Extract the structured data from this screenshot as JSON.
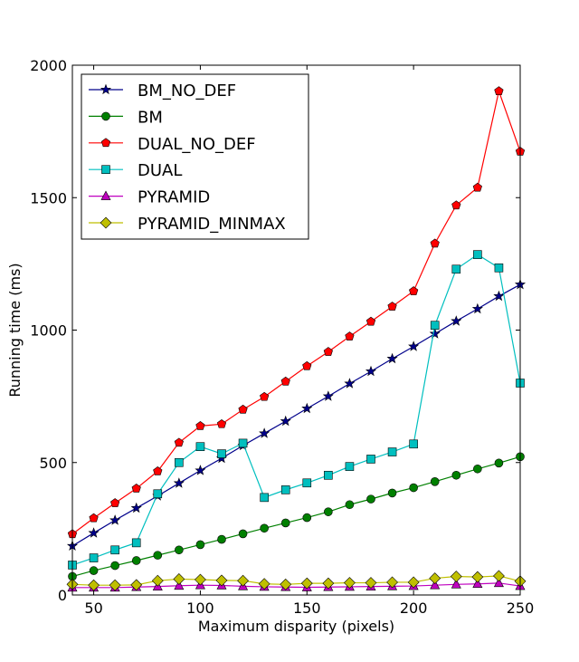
{
  "chart_data": {
    "type": "line",
    "title": "",
    "xlabel": "Maximum disparity (pixels)",
    "ylabel": "Running time (ms)",
    "xlim": [
      40,
      250
    ],
    "ylim": [
      0,
      2000
    ],
    "xticks": [
      50,
      100,
      150,
      200,
      250
    ],
    "yticks": [
      0,
      500,
      1000,
      1500,
      2000
    ],
    "grid": false,
    "legend_position": "top-left",
    "x": [
      40,
      50,
      60,
      70,
      80,
      90,
      100,
      110,
      120,
      130,
      140,
      150,
      160,
      170,
      180,
      190,
      200,
      210,
      220,
      230,
      240,
      250
    ],
    "series": [
      {
        "name": "BM_NO_DEF",
        "color": "#00008b",
        "marker": "star",
        "values": [
          185,
          234,
          282,
          328,
          374,
          422,
          470,
          516,
          564,
          610,
          656,
          704,
          750,
          798,
          844,
          892,
          938,
          986,
          1034,
          1080,
          1128,
          1172
        ]
      },
      {
        "name": "BM",
        "color": "#008000",
        "marker": "circle",
        "values": [
          70,
          92,
          111,
          130,
          150,
          170,
          190,
          210,
          231,
          252,
          272,
          292,
          314,
          341,
          362,
          385,
          405,
          428,
          452,
          476,
          498,
          522
        ]
      },
      {
        "name": "DUAL_NO_DEF",
        "color": "#ff0000",
        "marker": "pentagon",
        "values": [
          230,
          290,
          347,
          402,
          467,
          575,
          638,
          645,
          700,
          748,
          806,
          864,
          918,
          976,
          1032,
          1089,
          1147,
          1327,
          1471,
          1538,
          1902,
          1674
        ]
      },
      {
        "name": "DUAL",
        "color": "#00bfbf",
        "marker": "square",
        "values": [
          113,
          140,
          170,
          197,
          382,
          500,
          560,
          533,
          573,
          368,
          397,
          423,
          452,
          485,
          513,
          540,
          570,
          1018,
          1230,
          1285,
          1235,
          800
        ]
      },
      {
        "name": "PYRAMID",
        "color": "#bf00bf",
        "marker": "triangle",
        "values": [
          28,
          28,
          28,
          30,
          32,
          35,
          37,
          36,
          33,
          31,
          30,
          29,
          30,
          31,
          32,
          33,
          34,
          37,
          40,
          42,
          45,
          34
        ]
      },
      {
        "name": "PYRAMID_MINMAX",
        "color": "#bfbf00",
        "marker": "diamond",
        "values": [
          40,
          37,
          37,
          38,
          54,
          60,
          58,
          55,
          54,
          42,
          40,
          44,
          44,
          46,
          46,
          48,
          48,
          63,
          70,
          68,
          72,
          52
        ]
      }
    ]
  }
}
